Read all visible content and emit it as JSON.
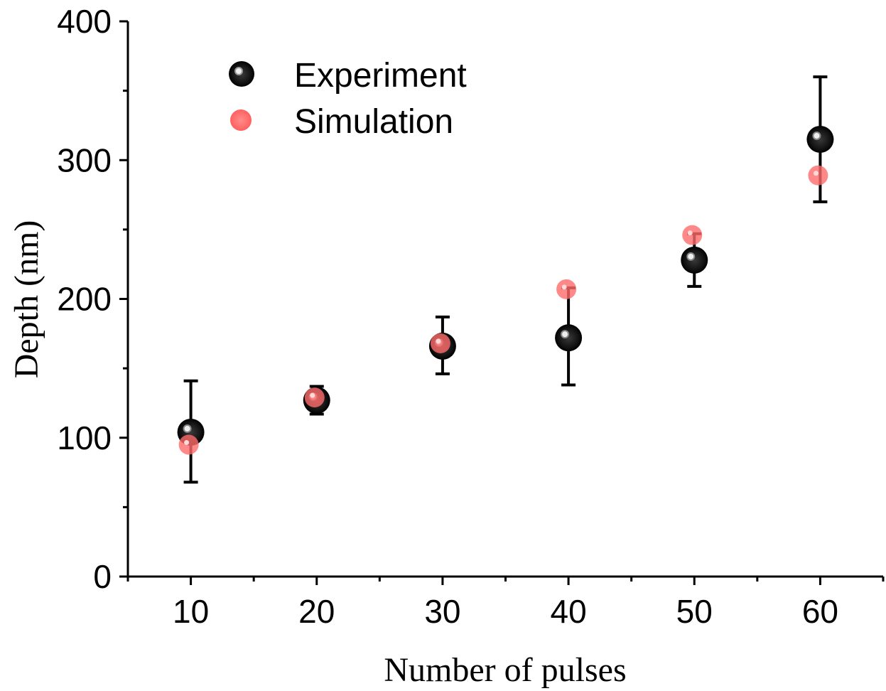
{
  "chart_data": {
    "type": "scatter",
    "xlabel": "Number of pulses",
    "ylabel": "Depth (nm)",
    "xlim": [
      5,
      65
    ],
    "ylim": [
      0,
      400
    ],
    "x_ticks": [
      "10",
      "20",
      "30",
      "40",
      "50",
      "60"
    ],
    "y_ticks": [
      "0",
      "100",
      "200",
      "300",
      "400"
    ],
    "legend_position": "top-left",
    "series": [
      {
        "name": "Experiment",
        "color": "#000000",
        "x": [
          10,
          20,
          30,
          40,
          50,
          60
        ],
        "y": [
          104,
          127,
          166,
          172,
          228,
          315
        ],
        "error_upper": [
          141,
          137,
          187,
          208,
          247,
          360
        ],
        "error_lower": [
          68,
          117,
          146,
          138,
          209,
          270
        ]
      },
      {
        "name": "Simulation",
        "color": "#ff6b6b",
        "x": [
          10,
          20,
          30,
          40,
          50,
          60
        ],
        "y": [
          95,
          129,
          168,
          207,
          246,
          289
        ]
      }
    ]
  }
}
